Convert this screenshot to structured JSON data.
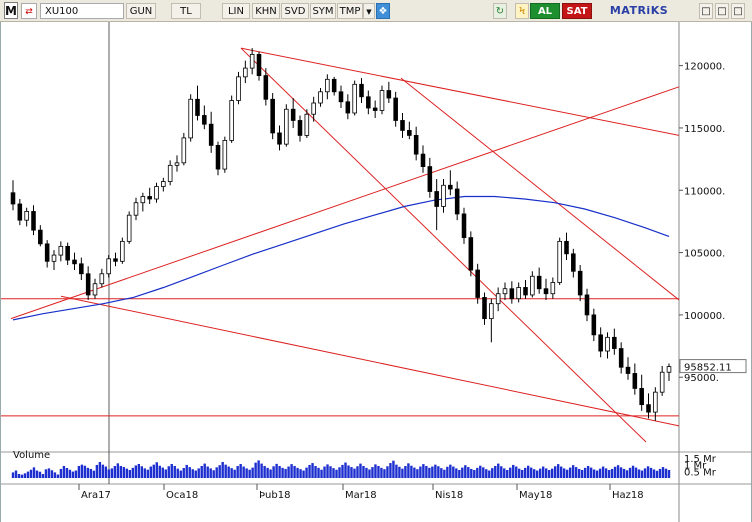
{
  "toolbar": {
    "logo": "M",
    "symbol_icon": "⇄",
    "symbol": "XU100",
    "period_button": "GUN",
    "currency_button": "TL",
    "tools": [
      "LIN",
      "KHN",
      "SVD",
      "SYM",
      "TMP"
    ],
    "dropdown_icon": "▼",
    "twitter_icon": "❖",
    "refresh_icon": "↻",
    "bolt_icon": "Ϟ",
    "buy_button": "AL",
    "sell_button": "SAT",
    "brand": "MATRiKS",
    "minimize_icon": "□",
    "maximize_icon": "□",
    "close_icon": "□"
  },
  "colors": {
    "candle_up": "#ffffff",
    "candle_down": "#000000",
    "moving_average": "#1730c9",
    "trendline": "#d22",
    "volume": "#1d2fcf",
    "buy": "#1e8f2e",
    "sell": "#c41616"
  },
  "chart_data": {
    "type": "candlestick",
    "symbol": "XU100",
    "y_axis": {
      "ticks": [
        "120000.",
        "115000.",
        "110000.",
        "105000.",
        "100000.",
        "95000."
      ],
      "tick_values": [
        120000,
        115000,
        110000,
        105000,
        100000,
        95000
      ],
      "range": [
        89000,
        123500
      ]
    },
    "last_price": "95852.11",
    "last_price_value": 95852.11,
    "x_axis": {
      "ticks": [
        "Ara17",
        "Oca18",
        "Þub18",
        "Mar18",
        "Nis18",
        "May18",
        "Haz18"
      ]
    },
    "moving_average": [
      [
        0,
        99600
      ],
      [
        10,
        100100
      ],
      [
        20,
        100500
      ],
      [
        30,
        100900
      ],
      [
        40,
        101400
      ],
      [
        50,
        102200
      ],
      [
        60,
        103100
      ],
      [
        70,
        104000
      ],
      [
        80,
        104900
      ],
      [
        90,
        105700
      ],
      [
        100,
        106500
      ],
      [
        110,
        107300
      ],
      [
        120,
        108000
      ],
      [
        130,
        108700
      ],
      [
        140,
        109200
      ],
      [
        150,
        109500
      ],
      [
        160,
        109500
      ],
      [
        170,
        109300
      ],
      [
        180,
        109000
      ],
      [
        190,
        108500
      ],
      [
        200,
        107800
      ],
      [
        210,
        107000
      ],
      [
        218,
        106300
      ]
    ],
    "candles": [
      [
        109800,
        110800,
        108400,
        108900
      ],
      [
        108900,
        109300,
        107200,
        107600
      ],
      [
        107600,
        108600,
        107100,
        108300
      ],
      [
        108300,
        108800,
        106400,
        106800
      ],
      [
        106800,
        107200,
        105500,
        105700
      ],
      [
        105700,
        106000,
        103800,
        104300
      ],
      [
        104300,
        105200,
        103600,
        104800
      ],
      [
        104800,
        105900,
        104300,
        105500
      ],
      [
        105500,
        105800,
        104000,
        104400
      ],
      [
        104400,
        105000,
        103600,
        104100
      ],
      [
        104100,
        104600,
        102800,
        103300
      ],
      [
        103300,
        103900,
        101200,
        101600
      ],
      [
        101600,
        102900,
        101300,
        102500
      ],
      [
        102500,
        103700,
        102200,
        103300
      ],
      [
        103300,
        104800,
        103000,
        104500
      ],
      [
        104500,
        105000,
        103900,
        104300
      ],
      [
        104300,
        106200,
        104100,
        105900
      ],
      [
        105900,
        108300,
        105700,
        108000
      ],
      [
        108000,
        109400,
        107600,
        109000
      ],
      [
        109000,
        109800,
        108300,
        109500
      ],
      [
        109500,
        110200,
        108900,
        109300
      ],
      [
        109300,
        110600,
        109000,
        110300
      ],
      [
        110300,
        111000,
        109900,
        110700
      ],
      [
        110700,
        112400,
        110400,
        112000
      ],
      [
        112000,
        112800,
        111500,
        112200
      ],
      [
        112200,
        114600,
        112000,
        114200
      ],
      [
        114200,
        117700,
        113900,
        117300
      ],
      [
        117300,
        118400,
        115600,
        116000
      ],
      [
        116000,
        116800,
        114900,
        115300
      ],
      [
        115300,
        116300,
        113000,
        113600
      ],
      [
        113600,
        113900,
        111200,
        111700
      ],
      [
        111700,
        114300,
        111400,
        114000
      ],
      [
        114000,
        117600,
        113800,
        117200
      ],
      [
        117200,
        119500,
        116900,
        119100
      ],
      [
        119100,
        120400,
        118600,
        119800
      ],
      [
        119800,
        121400,
        119300,
        120900
      ],
      [
        120900,
        121100,
        118800,
        119200
      ],
      [
        119200,
        119800,
        116800,
        117300
      ],
      [
        117300,
        117800,
        114100,
        114600
      ],
      [
        114600,
        115200,
        113200,
        113700
      ],
      [
        113700,
        116900,
        113500,
        116500
      ],
      [
        116500,
        117400,
        115000,
        115600
      ],
      [
        115600,
        116000,
        113900,
        114400
      ],
      [
        114400,
        116500,
        114200,
        116100
      ],
      [
        116100,
        117500,
        115500,
        117000
      ],
      [
        117000,
        118200,
        116700,
        117900
      ],
      [
        117900,
        119300,
        117300,
        118900
      ],
      [
        118900,
        119100,
        117600,
        117900
      ],
      [
        117900,
        118400,
        116600,
        117100
      ],
      [
        117100,
        117700,
        115700,
        116200
      ],
      [
        116200,
        118800,
        116000,
        118500
      ],
      [
        118500,
        119000,
        117000,
        117500
      ],
      [
        117500,
        118000,
        116100,
        116600
      ],
      [
        116600,
        117200,
        115800,
        116400
      ],
      [
        116400,
        118400,
        116100,
        118000
      ],
      [
        118000,
        118700,
        117000,
        117400
      ],
      [
        117400,
        117900,
        115100,
        115600
      ],
      [
        115600,
        116200,
        114200,
        114800
      ],
      [
        114800,
        115500,
        114100,
        114400
      ],
      [
        114400,
        115100,
        112400,
        112900
      ],
      [
        112900,
        113600,
        111400,
        111900
      ],
      [
        111900,
        112600,
        109400,
        109900
      ],
      [
        109900,
        110900,
        106800,
        108700
      ],
      [
        108700,
        110900,
        108200,
        110400
      ],
      [
        110400,
        111600,
        109600,
        110100
      ],
      [
        110100,
        110700,
        107600,
        108100
      ],
      [
        108100,
        108600,
        105700,
        106200
      ],
      [
        106200,
        106700,
        103100,
        103600
      ],
      [
        103600,
        104100,
        100900,
        101400
      ],
      [
        101400,
        101800,
        99200,
        99700
      ],
      [
        99700,
        101300,
        97800,
        100900
      ],
      [
        100900,
        102200,
        100300,
        101700
      ],
      [
        101700,
        102600,
        101200,
        102100
      ],
      [
        102100,
        102700,
        100900,
        101300
      ],
      [
        101300,
        102600,
        101000,
        102200
      ],
      [
        102200,
        102800,
        101300,
        101600
      ],
      [
        101600,
        103500,
        101400,
        103100
      ],
      [
        103100,
        103800,
        101700,
        102100
      ],
      [
        102100,
        102900,
        101200,
        101700
      ],
      [
        101700,
        103000,
        101300,
        102600
      ],
      [
        102600,
        106200,
        102400,
        105900
      ],
      [
        105900,
        106600,
        104400,
        104900
      ],
      [
        104900,
        105300,
        103000,
        103500
      ],
      [
        103500,
        104000,
        101100,
        101600
      ],
      [
        101600,
        102100,
        99500,
        100000
      ],
      [
        100000,
        100500,
        97900,
        98400
      ],
      [
        98400,
        99000,
        96600,
        97100
      ],
      [
        97100,
        98600,
        96500,
        98200
      ],
      [
        98200,
        98900,
        96800,
        97300
      ],
      [
        97300,
        97800,
        95300,
        95800
      ],
      [
        95800,
        96600,
        94800,
        95300
      ],
      [
        95300,
        96100,
        93600,
        94100
      ],
      [
        94100,
        95200,
        92300,
        92800
      ],
      [
        92800,
        93700,
        91700,
        92200
      ],
      [
        92200,
        94200,
        91500,
        93800
      ],
      [
        93800,
        95900,
        93500,
        95400
      ],
      [
        95400,
        96100,
        94700,
        95852
      ]
    ],
    "volume": {
      "ticks": [
        "1.5 Mr",
        "1 Mr",
        "0.5 Mr"
      ],
      "tick_values": [
        1500,
        1000,
        500
      ],
      "max": 1800,
      "values": [
        420,
        560,
        300,
        250,
        350,
        480,
        620,
        800,
        560,
        470,
        300,
        650,
        720,
        580,
        420,
        260,
        680,
        900,
        750,
        620,
        480,
        560,
        900,
        1000,
        920,
        760,
        680,
        550,
        980,
        1200,
        1000,
        860,
        640,
        720,
        900,
        1100,
        900,
        820,
        700,
        600,
        760,
        940,
        1050,
        880,
        720,
        620,
        860,
        1000,
        1180,
        920,
        780,
        640,
        880,
        1050,
        900,
        700,
        560,
        750,
        980,
        820,
        660,
        560,
        720,
        900,
        1080,
        860,
        720,
        580,
        800,
        960,
        1200,
        1000,
        860,
        740,
        620,
        900,
        1050,
        860,
        720,
        620,
        780,
        1150,
        1320,
        1080,
        900,
        760,
        640,
        880,
        1060,
        900,
        760,
        680,
        860,
        1040,
        900,
        760,
        660,
        560,
        780,
        980,
        1120,
        900,
        760,
        620,
        860,
        1020,
        880,
        740,
        620,
        800,
        980,
        1160,
        940,
        820,
        700,
        880,
        1080,
        900,
        760,
        640,
        820,
        1020,
        900,
        760,
        660,
        880,
        1120,
        1300,
        1000,
        840,
        700,
        900,
        1100,
        920,
        780,
        660,
        860,
        1040,
        900,
        760,
        860,
        1000,
        880,
        740,
        620,
        840,
        1000,
        860,
        720,
        600,
        780,
        960,
        820,
        680,
        600,
        760,
        920,
        800,
        660,
        560,
        740,
        900,
        1080,
        880,
        720,
        600,
        780,
        980,
        860,
        700,
        600,
        760,
        920,
        780,
        660,
        560,
        700,
        860,
        720,
        600,
        700,
        880,
        1040,
        860,
        720,
        620,
        780,
        960,
        820,
        680,
        600,
        760,
        900,
        780,
        640,
        560,
        700,
        860,
        720,
        600,
        680,
        840,
        960,
        800,
        680,
        580,
        760,
        920,
        780,
        640,
        560,
        720,
        880,
        760,
        640,
        540,
        680,
        820,
        700,
        600
      ]
    },
    "horizontal_lines": [
      101300,
      91900
    ],
    "trendlines": [
      {
        "x1": 240,
        "y1": 121400,
        "x2": 678,
        "y2": 114400
      },
      {
        "x1": 10,
        "y1": 99700,
        "x2": 678,
        "y2": 118300
      },
      {
        "x1": 240,
        "y1": 121400,
        "x2": 645,
        "y2": 89800
      },
      {
        "x1": 400,
        "y1": 119000,
        "x2": 678,
        "y2": 101200
      },
      {
        "x1": 60,
        "y1": 101500,
        "x2": 678,
        "y2": 91100
      }
    ],
    "crosshair_x": 108
  }
}
